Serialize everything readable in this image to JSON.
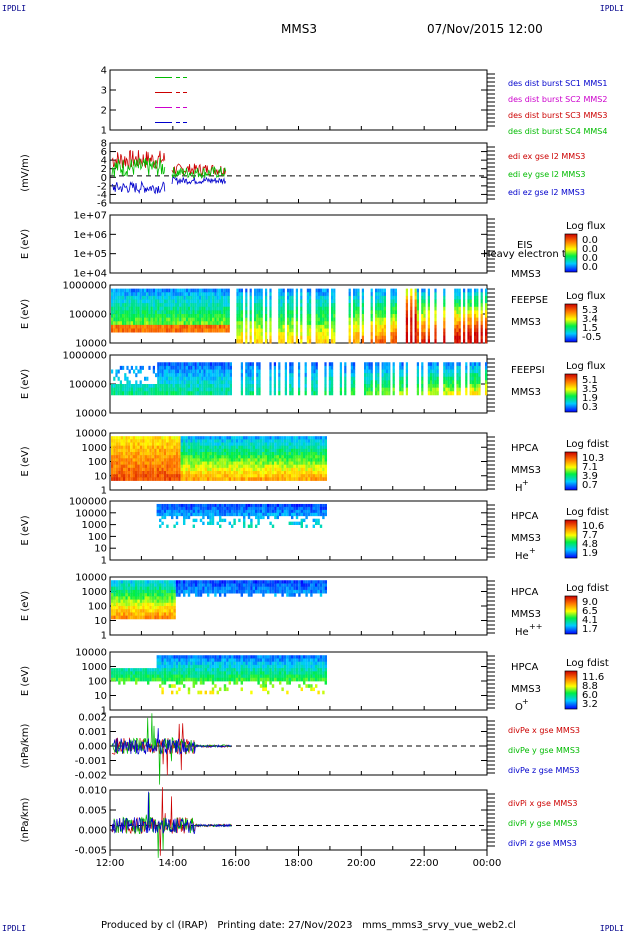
{
  "corner_label": "IPDLI",
  "header": {
    "spacecraft": "MMS3",
    "datetime": "07/Nov/2015 12:00"
  },
  "x_axis": {
    "ticks": [
      "12:00",
      "14:00",
      "16:00",
      "18:00",
      "20:00",
      "22:00",
      "00:00"
    ]
  },
  "footer": {
    "produced_by": "Produced by cl (IRAP)",
    "printing_date": "Printing date: 27/Nov/2023",
    "filename": "mms_mms3_srvy_vue_web2.cl"
  },
  "colors": {
    "mms1": "#0000cc",
    "mms2": "#cc00cc",
    "mms3": "#cc0000",
    "mms4": "#00bb00",
    "label_blue": "#0000cc"
  },
  "chart_data": [
    {
      "type": "line",
      "panel": "burst",
      "yticks": [
        "1",
        "2",
        "3",
        "4"
      ],
      "ylim": [
        0.5,
        4.5
      ],
      "legend": [
        "des dist burst SC1 MMS1",
        "des dist burst SC2 MMS2",
        "des dist burst SC3 MMS3",
        "des dist burst SC4 MMS4"
      ]
    },
    {
      "type": "line",
      "panel": "edi",
      "ylabel": "(mV/m)",
      "yticks": [
        "8",
        "6",
        "4",
        "2",
        "0",
        "-2",
        "-4",
        "-6"
      ],
      "ylim": [
        -7,
        8.5
      ],
      "legend": [
        "edi ex gse l2 MMS3",
        "edi ey gse l2 MMS3",
        "edi ez gse l2 MMS3"
      ]
    },
    {
      "type": "heatmap",
      "panel": "eis",
      "ylabel": "E (eV)",
      "yticks": [
        "1e+07",
        "1e+06",
        "1e+05",
        "1e+04"
      ],
      "instrument": "EIS",
      "sc": "MMS3",
      "overlay": "Heavy electron to",
      "colorbar": {
        "title": "Log flux",
        "ticks": [
          "0.0",
          "0.0",
          "0.0",
          "0.0"
        ]
      }
    },
    {
      "type": "heatmap",
      "panel": "feeps_e",
      "ylabel": "E (eV)",
      "yticks": [
        "1000000",
        "100000",
        "10000"
      ],
      "instrument": "FEEPSE",
      "sc": "MMS3",
      "colorbar": {
        "title": "Log flux",
        "ticks": [
          "5.3",
          "3.4",
          "1.5",
          "-0.5"
        ]
      }
    },
    {
      "type": "heatmap",
      "panel": "feeps_i",
      "ylabel": "E (eV)",
      "yticks": [
        "1000000",
        "100000",
        "10000"
      ],
      "instrument": "FEEPSI",
      "sc": "MMS3",
      "colorbar": {
        "title": "Log flux",
        "ticks": [
          "5.1",
          "3.5",
          "1.9",
          "0.3"
        ]
      }
    },
    {
      "type": "heatmap",
      "panel": "hpca_h",
      "ylabel": "E (eV)",
      "yticks": [
        "10000",
        "1000",
        "100",
        "10",
        "1"
      ],
      "instrument": "HPCA",
      "sc": "MMS3",
      "species": "H",
      "charge": "+",
      "colorbar": {
        "title": "Log fdist",
        "ticks": [
          "10.3",
          "7.1",
          "3.9",
          "0.7"
        ]
      }
    },
    {
      "type": "heatmap",
      "panel": "hpca_he1",
      "ylabel": "E (eV)",
      "yticks": [
        "100000",
        "10000",
        "1000",
        "100",
        "10",
        "1"
      ],
      "instrument": "HPCA",
      "sc": "MMS3",
      "species": "He",
      "charge": "+",
      "colorbar": {
        "title": "Log fdist",
        "ticks": [
          "10.6",
          "7.7",
          "4.8",
          "1.9"
        ]
      }
    },
    {
      "type": "heatmap",
      "panel": "hpca_he2",
      "ylabel": "E (eV)",
      "yticks": [
        "10000",
        "1000",
        "100",
        "10",
        "1"
      ],
      "instrument": "HPCA",
      "sc": "MMS3",
      "species": "He",
      "charge": "++",
      "colorbar": {
        "title": "Log fdist",
        "ticks": [
          "9.0",
          "6.5",
          "4.1",
          "1.7"
        ]
      }
    },
    {
      "type": "heatmap",
      "panel": "hpca_o",
      "ylabel": "E (eV)",
      "yticks": [
        "10000",
        "1000",
        "100",
        "10",
        "1"
      ],
      "instrument": "HPCA",
      "sc": "MMS3",
      "species": "O",
      "charge": "+",
      "colorbar": {
        "title": "Log fdist",
        "ticks": [
          "11.6",
          "8.8",
          "6.0",
          "3.2"
        ]
      }
    },
    {
      "type": "line",
      "panel": "divpe",
      "ylabel": "(nPa/km)",
      "yticks": [
        "0.002",
        "0.001",
        "0.000",
        "-0.001",
        "-0.002"
      ],
      "ylim": [
        -0.0028,
        0.0028
      ],
      "legend": [
        "divPe x gse MMS3",
        "divPe y gse MMS3",
        "divPe z gse MMS3"
      ]
    },
    {
      "type": "line",
      "panel": "divpi",
      "ylabel": "(nPa/km)",
      "yticks": [
        "0.010",
        "0.005",
        "0.000",
        "-0.005"
      ],
      "ylim": [
        -0.009,
        0.013
      ],
      "legend": [
        "divPi x gse MMS3",
        "divPi y gse MMS3",
        "divPi z gse MMS3"
      ]
    }
  ]
}
